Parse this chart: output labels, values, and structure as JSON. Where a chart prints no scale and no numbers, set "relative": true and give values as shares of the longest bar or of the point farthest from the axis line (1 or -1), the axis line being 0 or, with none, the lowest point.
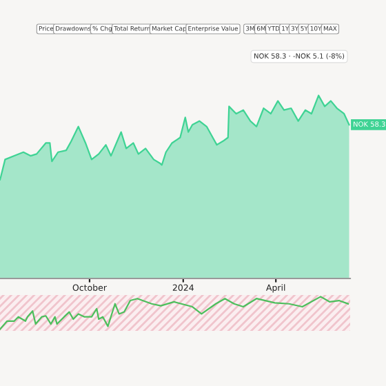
{
  "chart_data": [
    {
      "type": "area",
      "relative": true,
      "color": "#3fd394",
      "annotations": [
        "Price",
        "Drawdowns",
        "% Chg",
        "Total Return",
        "Market Cap",
        "Enterprise Value",
        "3M",
        "6M",
        "YTD",
        "1Y",
        "3Y",
        "5Y",
        "10Y",
        "MAX",
        "NOK 58.3 · -NOK 5.1 (-8%)",
        {
          "text": "NOK 58.3",
          "x": "2024-06-12",
          "y": 0.84
        }
      ],
      "xlim": [
        "2023-07-05",
        "2024-06-13"
      ],
      "xticks": [
        {
          "value": "2023-10-01",
          "label": "October"
        },
        {
          "value": "2024-01-01",
          "label": "2024"
        },
        {
          "value": "2024-04-01",
          "label": "April"
        }
      ],
      "x": [
        "2023-07-05",
        "2023-07-06",
        "2023-07-10",
        "2023-07-19",
        "2023-07-28",
        "2023-08-04",
        "2023-08-10",
        "2023-08-19",
        "2023-08-23",
        "2023-08-25",
        "2023-08-31",
        "2023-09-08",
        "2023-09-13",
        "2023-09-20",
        "2023-09-27",
        "2023-10-03",
        "2023-10-10",
        "2023-10-17",
        "2023-10-22",
        "2023-11-01",
        "2023-11-06",
        "2023-11-13",
        "2023-11-18",
        "2023-11-25",
        "2023-12-03",
        "2023-12-09",
        "2023-12-11",
        "2023-12-15",
        "2023-12-21",
        "2023-12-29",
        "2024-01-03",
        "2024-01-06",
        "2024-01-10",
        "2024-01-17",
        "2024-01-24",
        "2024-01-30",
        "2024-02-03",
        "2024-02-09",
        "2024-02-14",
        "2024-02-15",
        "2024-02-22",
        "2024-02-29",
        "2024-03-07",
        "2024-03-13",
        "2024-03-20",
        "2024-03-27",
        "2024-04-03",
        "2024-04-09",
        "2024-04-16",
        "2024-04-23",
        "2024-04-30",
        "2024-05-06",
        "2024-05-13",
        "2024-05-19",
        "2024-05-25",
        "2024-05-31",
        "2024-06-07",
        "2024-06-12"
      ],
      "values": [
        0.54,
        0.56,
        0.65,
        0.67,
        0.69,
        0.67,
        0.68,
        0.74,
        0.74,
        0.64,
        0.69,
        0.7,
        0.75,
        0.83,
        0.74,
        0.65,
        0.68,
        0.73,
        0.67,
        0.8,
        0.71,
        0.74,
        0.68,
        0.71,
        0.65,
        0.63,
        0.62,
        0.69,
        0.74,
        0.77,
        0.88,
        0.8,
        0.84,
        0.86,
        0.83,
        0.77,
        0.73,
        0.75,
        0.77,
        0.94,
        0.9,
        0.92,
        0.86,
        0.83,
        0.93,
        0.9,
        0.97,
        0.92,
        0.93,
        0.86,
        0.92,
        0.9,
        1,
        0.94,
        0.97,
        0.93,
        0.9,
        0.84
      ]
    },
    {
      "type": "line",
      "relative": true,
      "color": "#4cbf5c",
      "xlim": [
        "2023-07-05",
        "2024-06-13"
      ],
      "x": [
        "2023-07-05",
        "2023-07-12",
        "2023-07-19",
        "2023-07-23",
        "2023-07-30",
        "2023-08-01",
        "2023-08-06",
        "2023-08-09",
        "2023-08-15",
        "2023-08-19",
        "2023-08-24",
        "2023-08-28",
        "2023-08-30",
        "2023-09-06",
        "2023-09-11",
        "2023-09-15",
        "2023-09-20",
        "2023-09-26",
        "2023-10-03",
        "2023-10-08",
        "2023-10-10",
        "2023-10-14",
        "2023-10-19",
        "2023-10-26",
        "2023-10-30",
        "2023-11-04",
        "2023-11-10",
        "2023-11-17",
        "2023-12-01",
        "2023-12-10",
        "2023-12-23",
        "2024-01-10",
        "2024-01-19",
        "2024-02-02",
        "2024-02-11",
        "2024-02-20",
        "2024-02-29",
        "2024-03-13",
        "2024-03-31",
        "2024-04-14",
        "2024-04-27",
        "2024-05-15",
        "2024-05-24",
        "2024-06-02",
        "2024-06-11"
      ],
      "values": [
        0,
        0.25,
        0.25,
        0.38,
        0.25,
        0.38,
        0.56,
        0.16,
        0.38,
        0.41,
        0.16,
        0.38,
        0.16,
        0.38,
        0.53,
        0.31,
        0.47,
        0.38,
        0.38,
        0.63,
        0.31,
        0.38,
        0.09,
        0.78,
        0.47,
        0.53,
        0.88,
        0.94,
        0.78,
        0.72,
        0.84,
        0.69,
        0.47,
        0.78,
        0.94,
        0.78,
        0.69,
        0.94,
        0.81,
        0.78,
        0.69,
        1,
        0.84,
        0.88,
        0.78
      ]
    }
  ]
}
